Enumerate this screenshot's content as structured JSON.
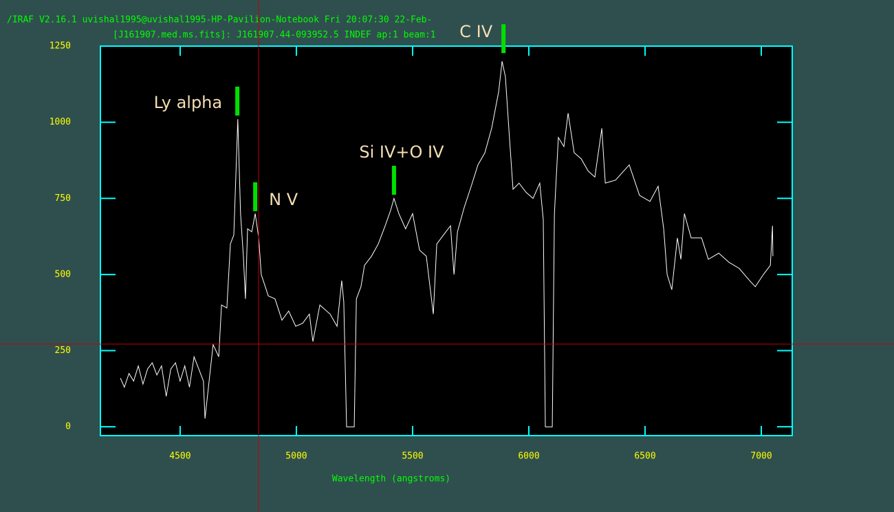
{
  "chart_data": {
    "type": "line",
    "title": "/IRAF V2.16.1 uvishal1995@uvishal1995-HP-Pavilion-Notebook Fri 20:07:30 22-Feb-",
    "subtitle": "[J161907.med.ms.fits]: J161907.44-093952.5 INDEF ap:1 beam:1",
    "xlabel": "Wavelength (angstroms)",
    "color": "#ffffff",
    "x": [
      4243,
      4260,
      4280,
      4300,
      4320,
      4340,
      4360,
      4380,
      4400,
      4420,
      4440,
      4460,
      4480,
      4500,
      4520,
      4540,
      4560,
      4580,
      4600,
      4607,
      4642,
      4666,
      4678,
      4701,
      4716,
      4731,
      4748,
      4760,
      4772,
      4781,
      4790,
      4808,
      4823,
      4838,
      4849,
      4879,
      4908,
      4938,
      4967,
      4997,
      5027,
      5056,
      5071,
      5101,
      5145,
      5175,
      5195,
      5204,
      5216,
      5249,
      5258,
      5278,
      5293,
      5323,
      5352,
      5382,
      5405,
      5420,
      5441,
      5470,
      5500,
      5530,
      5559,
      5589,
      5604,
      5633,
      5663,
      5678,
      5693,
      5722,
      5752,
      5781,
      5811,
      5840,
      5870,
      5885,
      5899,
      5914,
      5932,
      5958,
      5988,
      6018,
      6047,
      6062,
      6071,
      6101,
      6110,
      6127,
      6151,
      6169,
      6195,
      6225,
      6255,
      6284,
      6314,
      6329,
      6373,
      6432,
      6476,
      6521,
      6556,
      6580,
      6595,
      6615,
      6639,
      6654,
      6669,
      6698,
      6743,
      6772,
      6817,
      6861,
      6905,
      6950,
      6974,
      7009,
      7039,
      7048,
      7050
    ],
    "values": [
      160,
      130,
      175,
      150,
      200,
      140,
      190,
      210,
      170,
      200,
      100,
      190,
      210,
      150,
      200,
      130,
      230,
      190,
      150,
      27,
      270,
      230,
      400,
      390,
      600,
      630,
      1010,
      700,
      560,
      420,
      650,
      640,
      700,
      620,
      500,
      430,
      420,
      350,
      380,
      330,
      340,
      370,
      280,
      400,
      370,
      330,
      480,
      410,
      0,
      0,
      420,
      460,
      530,
      560,
      600,
      660,
      710,
      750,
      700,
      650,
      700,
      580,
      560,
      370,
      600,
      630,
      660,
      500,
      640,
      720,
      790,
      860,
      900,
      980,
      1100,
      1200,
      1150,
      980,
      780,
      800,
      770,
      750,
      800,
      680,
      0,
      0,
      700,
      950,
      920,
      1030,
      900,
      880,
      840,
      820,
      980,
      800,
      810,
      860,
      760,
      740,
      790,
      650,
      500,
      450,
      620,
      550,
      700,
      620,
      620,
      550,
      570,
      540,
      520,
      480,
      460,
      500,
      530,
      660,
      560
    ],
    "xlim": [
      4157,
      7133
    ],
    "ylim": [
      -29,
      1250
    ],
    "xticks": [
      4500,
      5000,
      5500,
      6000,
      6500,
      7000
    ],
    "yticks": [
      0,
      250,
      500,
      750,
      1000,
      1250
    ],
    "annotations": [
      {
        "text": "Ly alpha",
        "x": 4746,
        "y": 1022
      },
      {
        "text": "N V",
        "x": 4823,
        "y": 708
      },
      {
        "text": "Si IV+O IV",
        "x": 5420,
        "y": 762
      },
      {
        "text": "C IV",
        "x": 5891,
        "y": 1227
      }
    ]
  }
}
